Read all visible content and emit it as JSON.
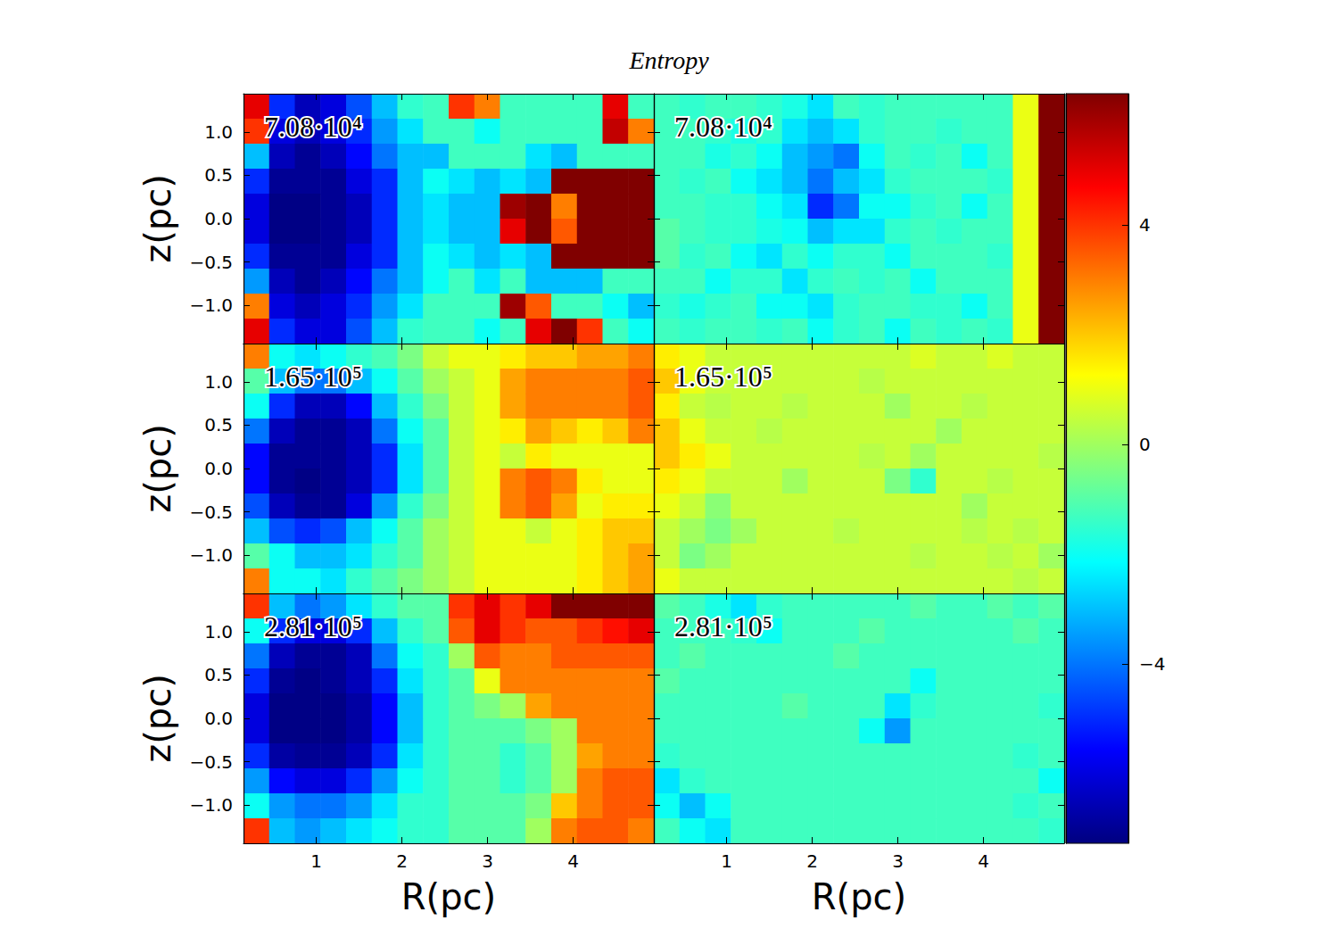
{
  "chart_data": {
    "type": "heatmap",
    "title": "Entropy",
    "xlabel": "R(pc)",
    "ylabel": "z(pc)",
    "xlim": [
      0.15,
      4.94
    ],
    "ylim": [
      -1.44,
      1.44
    ],
    "xticks": [
      1,
      2,
      3,
      4
    ],
    "yticks": [
      {
        "value": -1.0,
        "label": "−1.0"
      },
      {
        "value": -0.5,
        "label": "−0.5"
      },
      {
        "value": 0,
        "label": "0.0"
      },
      {
        "value": 0.5,
        "label": "0.5"
      },
      {
        "value": 1.0,
        "label": "1.0"
      }
    ],
    "clim": [
      -7.27,
      6.39
    ],
    "cticks": [
      {
        "value": -4,
        "label": "−4"
      },
      0,
      4
    ],
    "tick_labels": true,
    "panels": [
      {
        "label": "7.08·10⁴",
        "cells": [
          [
            5,
            -5,
            -6.5,
            -6,
            -4.5,
            -3,
            -1.5,
            -1.3,
            4,
            3,
            -1.3,
            -1.3,
            -1.3,
            -1.3,
            5,
            -1.3
          ],
          [
            4,
            -6,
            -6.5,
            -6,
            -5,
            -3.5,
            -2.5,
            -1.3,
            -1.3,
            -2,
            -1.3,
            -1.3,
            -1.3,
            -1.3,
            5.5,
            3
          ],
          [
            -3,
            -6.5,
            -7,
            -6.5,
            -5.5,
            -4,
            -3,
            -3,
            -1.3,
            -1.3,
            -1.3,
            -2.5,
            -3,
            -1.3,
            -1.3,
            -1.3
          ],
          [
            -5,
            -7,
            -7,
            -7,
            -6,
            -5,
            -3,
            -2,
            -2.5,
            -3,
            -2.5,
            -3,
            6.5,
            6.5,
            6.5,
            6.5
          ],
          [
            -6,
            -7.2,
            -7.2,
            -7,
            -6.5,
            -5,
            -3,
            -2.5,
            -3,
            -3,
            6,
            6.5,
            3,
            6.5,
            6.5,
            6.5
          ],
          [
            -6,
            -7.2,
            -7.2,
            -7,
            -6.5,
            -5,
            -3,
            -2.5,
            -3,
            -3,
            5,
            6.5,
            3.5,
            6.5,
            6.5,
            6.5
          ],
          [
            -5,
            -7,
            -7,
            -7,
            -6,
            -5,
            -3,
            -2,
            -2.5,
            -3,
            -2.5,
            -3,
            6.5,
            6.5,
            6.5,
            6.5
          ],
          [
            -3.5,
            -6.5,
            -7,
            -6.5,
            -5.5,
            -4,
            -3,
            -2,
            -1.3,
            -2.5,
            -1.3,
            -3,
            -3,
            -3,
            -1.3,
            -1.3
          ],
          [
            3,
            -6,
            -6.5,
            -6,
            -5,
            -3.5,
            -2.5,
            -1.3,
            -1.3,
            -1.3,
            6,
            3.5,
            -1.3,
            -1.3,
            -2,
            -3
          ],
          [
            5,
            -5,
            -6,
            -6,
            -4.5,
            -3,
            -1.5,
            -1.3,
            -1.3,
            -2,
            -1.3,
            5,
            6.5,
            4,
            -1.3,
            -2
          ]
        ]
      },
      {
        "label": "7.08·10⁴",
        "cells": [
          [
            -1.3,
            -1.5,
            -1.3,
            -1.3,
            -1.5,
            -1.8,
            -2.5,
            -1.3,
            -1.5,
            -1.3,
            -1.3,
            -1.3,
            -1.3,
            -1.3,
            1,
            6.5
          ],
          [
            -1.3,
            -1.3,
            -1.5,
            -1.8,
            -1.5,
            -2.5,
            -3,
            -2.5,
            -1.5,
            -1.3,
            -1.3,
            -1.5,
            -1.3,
            -1.3,
            1,
            6.5
          ],
          [
            -1.3,
            -1.3,
            -1.8,
            -1.5,
            -2,
            -3,
            -3.5,
            -4,
            -2,
            -1.3,
            -1.5,
            -1.3,
            -2,
            -1.3,
            1,
            6.5
          ],
          [
            -1.3,
            -1.5,
            -1.3,
            -2,
            -2.5,
            -3,
            -4,
            -3,
            -2.5,
            -1.5,
            -1.3,
            -1.3,
            -1.3,
            -1.5,
            1,
            6.5
          ],
          [
            -1.3,
            -1.3,
            -1.5,
            -1.5,
            -2,
            -2.5,
            -5,
            -4,
            -2,
            -2,
            -1.5,
            -1.3,
            -2,
            -1.3,
            1,
            6.5
          ],
          [
            -1,
            -1.3,
            -1.5,
            -1.5,
            -1.8,
            -2,
            -3,
            -2.5,
            -2.5,
            -1.5,
            -1.3,
            -1.5,
            -1.3,
            -1.3,
            1,
            6.5
          ],
          [
            -1,
            -1.5,
            -1.3,
            -2,
            -2.5,
            -1.5,
            -2,
            -1.5,
            -1.5,
            -2,
            -1.3,
            -1.3,
            -1.3,
            -1.5,
            1,
            6.5
          ],
          [
            -1.3,
            -1.3,
            -2,
            -1.5,
            -1.5,
            -2.5,
            -1.5,
            -1.3,
            -1.5,
            -1.3,
            -2,
            -1.3,
            -1.3,
            -1.3,
            1,
            6.5
          ],
          [
            -1.5,
            -1.8,
            -1.5,
            -1.3,
            -2,
            -2,
            -2.5,
            -1.5,
            -1.3,
            -1.3,
            -1.5,
            -1.5,
            -2,
            -1.3,
            1,
            6.5
          ],
          [
            -1.3,
            -1.5,
            -1.3,
            -1.3,
            -1.5,
            -1.3,
            -2,
            -1.5,
            -1.3,
            -2,
            -1.3,
            -1.5,
            -1.3,
            -1.5,
            1,
            6.5
          ]
        ]
      },
      {
        "label": "1.65·10⁵",
        "cells": [
          [
            3,
            -2,
            -2.5,
            -2,
            -1.5,
            -1.2,
            -0.5,
            0.5,
            1,
            1,
            1.5,
            2,
            2,
            2.5,
            2.5,
            3
          ],
          [
            -1,
            -3,
            -4,
            -4,
            -3,
            -2,
            -1,
            0,
            0.5,
            1,
            2.5,
            3,
            3,
            3,
            3,
            3.5
          ],
          [
            -2,
            -5,
            -6.5,
            -6.5,
            -5.5,
            -3,
            -1.5,
            -0.5,
            0.5,
            1,
            2.5,
            3,
            3,
            3,
            3,
            3.5
          ],
          [
            -4,
            -6.5,
            -7,
            -7,
            -6.5,
            -4,
            -2,
            -1,
            0.5,
            1,
            1.5,
            2.5,
            2,
            1.5,
            2,
            3
          ],
          [
            -5.5,
            -7,
            -7,
            -7,
            -6.5,
            -5,
            -2.5,
            -1,
            0.5,
            1,
            0.5,
            1.5,
            1,
            1,
            1,
            1
          ],
          [
            -5.5,
            -7,
            -7.2,
            -7,
            -6.5,
            -5,
            -2.5,
            -1,
            0.5,
            1,
            3,
            3.5,
            3,
            1.5,
            1,
            1
          ],
          [
            -4.5,
            -6.5,
            -7,
            -7,
            -6,
            -3.5,
            -1.5,
            -0.5,
            0.5,
            1,
            3,
            3.5,
            2.5,
            1,
            1.5,
            1.5
          ],
          [
            -3,
            -4.5,
            -5,
            -4.5,
            -3,
            -2,
            -1,
            0,
            0.5,
            1,
            1,
            0.5,
            1,
            1.5,
            2,
            2
          ],
          [
            -1,
            -2,
            -3,
            -3,
            -2.5,
            -1.5,
            -1,
            0,
            0.5,
            1,
            1,
            1,
            1,
            1.5,
            2,
            2.5
          ],
          [
            3,
            -2,
            -2,
            -2.5,
            -1.5,
            -1,
            -0.5,
            0,
            0.5,
            1,
            1,
            1,
            1,
            1.5,
            2,
            2.5
          ]
        ]
      },
      {
        "label": "1.65·10⁵",
        "cells": [
          [
            1.5,
            1,
            0.5,
            0.5,
            0.5,
            0.5,
            0.5,
            0.5,
            0.5,
            0.5,
            0.8,
            0.5,
            0.5,
            0.8,
            0.5,
            0.5
          ],
          [
            2,
            1,
            0.5,
            0.5,
            0.5,
            0.5,
            0.5,
            0.5,
            0.3,
            0.5,
            0.5,
            0.5,
            0.5,
            0.5,
            0.5,
            0.5
          ],
          [
            1.5,
            0.5,
            0.3,
            0.5,
            0.5,
            0.3,
            0.5,
            0.5,
            0.5,
            0,
            0.5,
            0.5,
            0.3,
            0.5,
            0.5,
            0.5
          ],
          [
            2,
            1,
            0.5,
            0.5,
            0.3,
            0.5,
            0.5,
            0.5,
            0.5,
            0.5,
            0.5,
            0,
            0.5,
            0.5,
            0.5,
            0.5
          ],
          [
            2,
            1.5,
            1,
            0.5,
            0.5,
            0.5,
            0.5,
            0.5,
            0.3,
            0.5,
            0,
            0.5,
            0.5,
            0.5,
            0.5,
            0.3
          ],
          [
            1.5,
            1,
            0.5,
            0.5,
            0.5,
            0,
            0.5,
            0.5,
            0.5,
            -0.5,
            -1.5,
            0.5,
            0.5,
            0.3,
            0.5,
            0.5
          ],
          [
            1,
            0.5,
            -0.3,
            0.5,
            0.5,
            0.5,
            0.5,
            0.5,
            0.5,
            0.5,
            0.5,
            0.5,
            0,
            0.5,
            0.5,
            0.5
          ],
          [
            0.5,
            0,
            -0.5,
            0,
            0.5,
            0.5,
            0.5,
            0.3,
            0.5,
            0.5,
            0.5,
            0.5,
            0.3,
            0.5,
            0.3,
            0.5
          ],
          [
            0.5,
            -0.5,
            0,
            0.5,
            0.5,
            0.5,
            0.5,
            0.5,
            0.5,
            0.5,
            0.3,
            0.5,
            0.5,
            0.3,
            0.5,
            0
          ],
          [
            1,
            0.5,
            0.5,
            0.5,
            0.5,
            0.5,
            0.5,
            0.5,
            0.5,
            0.5,
            0.5,
            0.5,
            0.5,
            0.5,
            0.3,
            0.5
          ]
        ]
      },
      {
        "label": "2.81·10⁵",
        "cells": [
          [
            4,
            -3,
            -4,
            -3.5,
            -2.5,
            -1.5,
            -1,
            -1,
            4,
            5,
            4,
            5,
            6.5,
            6.5,
            6.5,
            6.5
          ],
          [
            -2,
            -5,
            -6,
            -6,
            -5,
            -3,
            -1.5,
            -1,
            3.5,
            5,
            4,
            3.5,
            3.5,
            4,
            4.5,
            5
          ],
          [
            -4,
            -6.5,
            -7,
            -7,
            -6.5,
            -4,
            -2,
            -1.5,
            0,
            3.5,
            3,
            3,
            3.5,
            3.5,
            3.5,
            3.5
          ],
          [
            -5,
            -7,
            -7.2,
            -7,
            -6.5,
            -5,
            -2.5,
            -1.5,
            -1,
            1,
            3,
            3,
            3,
            3,
            3,
            3
          ],
          [
            -6,
            -7.2,
            -7.2,
            -7.2,
            -6.8,
            -5.5,
            -3,
            -1.5,
            -1,
            -0.5,
            0,
            2.5,
            3,
            3,
            3,
            3
          ],
          [
            -6,
            -7.2,
            -7.2,
            -7.2,
            -6.8,
            -5.5,
            -3,
            -1.5,
            -1,
            -1,
            -1,
            -0.5,
            0,
            3,
            3,
            3
          ],
          [
            -5,
            -6.8,
            -7,
            -7,
            -6.5,
            -5,
            -2.5,
            -1.5,
            -1,
            -1,
            -1.5,
            -1,
            0,
            2.5,
            3,
            3
          ],
          [
            -3.5,
            -5.5,
            -6,
            -6,
            -5,
            -3.5,
            -2,
            -1.5,
            -1,
            -1,
            -1.5,
            -1,
            0,
            3,
            3.5,
            3.5
          ],
          [
            -2,
            -3.5,
            -4,
            -4,
            -3.5,
            -2.5,
            -1.5,
            -1.5,
            -1,
            -1,
            -1,
            -0.5,
            2,
            3,
            3.5,
            3.5
          ],
          [
            4,
            -3,
            -3.5,
            -3,
            -2.5,
            -2,
            -1.5,
            -1.5,
            -1,
            -1,
            -1,
            0,
            3,
            3.5,
            3.5,
            3
          ]
        ]
      },
      {
        "label": "2.81·10⁵",
        "cells": [
          [
            -1,
            -1.3,
            -1.8,
            -2.5,
            -1.5,
            -1.3,
            -1.3,
            -1.3,
            -1.3,
            -1.3,
            -1,
            -1.3,
            -1.3,
            -1,
            -1.3,
            -1
          ],
          [
            -1.3,
            -1.3,
            -1.3,
            -1.5,
            -2,
            -1.3,
            -1.3,
            -1.3,
            -1,
            -1.3,
            -1.3,
            -1.3,
            -1.3,
            -1.3,
            -1,
            -1.3
          ],
          [
            -1.3,
            -1,
            -1.3,
            -1.3,
            -1.3,
            -1.3,
            -1.3,
            -1,
            -1.3,
            -1.3,
            -1.3,
            -1.3,
            -1.3,
            -1.3,
            -1.3,
            -1.3
          ],
          [
            -1,
            -1.3,
            -1.3,
            -1.3,
            -1.3,
            -1.3,
            -1.3,
            -1.3,
            -1.3,
            -1.3,
            -2,
            -1.3,
            -1.3,
            -1.3,
            -1.3,
            -1.3
          ],
          [
            -1.3,
            -1.3,
            -1.3,
            -1.3,
            -1.3,
            -1,
            -1.3,
            -1.3,
            -1.3,
            -2.5,
            -1.5,
            -1.3,
            -1.3,
            -1.3,
            -1.3,
            -1.5
          ],
          [
            -1.3,
            -1.3,
            -1.3,
            -1.3,
            -1.3,
            -1.3,
            -1.3,
            -1.3,
            -2,
            -3.5,
            -1.3,
            -1.3,
            -1.3,
            -1.3,
            -1.3,
            -1.3
          ],
          [
            -1.5,
            -1.3,
            -1.3,
            -1.3,
            -1.3,
            -1.3,
            -1.3,
            -1.3,
            -1.3,
            -1.3,
            -1.3,
            -1.3,
            -1.3,
            -1.3,
            -1.5,
            -1.3
          ],
          [
            -2.5,
            -1.5,
            -1.3,
            -1.3,
            -1.3,
            -1.3,
            -1.3,
            -1.3,
            -1.3,
            -1.3,
            -1.3,
            -1.3,
            -1.3,
            -1.3,
            -1.3,
            -2
          ],
          [
            -2,
            -3,
            -2,
            -1.3,
            -1.3,
            -1.3,
            -1.3,
            -1.3,
            -1.3,
            -1.3,
            -1.3,
            -1.3,
            -1.3,
            -1.3,
            -1.5,
            -1.3
          ],
          [
            -1.3,
            -2,
            -2.5,
            -1.3,
            -1.3,
            -1.3,
            -1.3,
            -1.3,
            -1.3,
            -1.3,
            -1.3,
            -1.3,
            -1.3,
            -1.3,
            -1.3,
            -1.5
          ]
        ]
      }
    ]
  }
}
